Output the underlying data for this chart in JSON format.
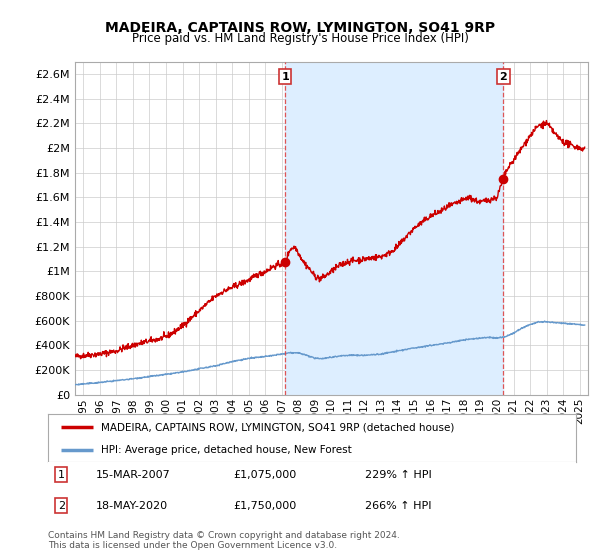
{
  "title": "MADEIRA, CAPTAINS ROW, LYMINGTON, SO41 9RP",
  "subtitle": "Price paid vs. HM Land Registry's House Price Index (HPI)",
  "ylabel_ticks": [
    "£0",
    "£200K",
    "£400K",
    "£600K",
    "£800K",
    "£1M",
    "£1.2M",
    "£1.4M",
    "£1.6M",
    "£1.8M",
    "£2M",
    "£2.2M",
    "£2.4M",
    "£2.6M"
  ],
  "ytick_values": [
    0,
    200000,
    400000,
    600000,
    800000,
    1000000,
    1200000,
    1400000,
    1600000,
    1800000,
    2000000,
    2200000,
    2400000,
    2600000
  ],
  "ylim": [
    0,
    2700000
  ],
  "xlim_start": 1994.5,
  "xlim_end": 2025.5,
  "red_line_color": "#cc0000",
  "blue_line_color": "#6699cc",
  "shade_color": "#ddeeff",
  "dashed_color": "#dd4444",
  "marker1_x": 2007.2,
  "marker1_y": 1075000,
  "marker2_x": 2020.38,
  "marker2_y": 1750000,
  "marker1_label": "1",
  "marker2_label": "2",
  "annotation1_date": "15-MAR-2007",
  "annotation1_price": "£1,075,000",
  "annotation1_hpi": "229% ↑ HPI",
  "annotation2_date": "18-MAY-2020",
  "annotation2_price": "£1,750,000",
  "annotation2_hpi": "266% ↑ HPI",
  "legend_red_label": "MADEIRA, CAPTAINS ROW, LYMINGTON, SO41 9RP (detached house)",
  "legend_blue_label": "HPI: Average price, detached house, New Forest",
  "footer_text": "Contains HM Land Registry data © Crown copyright and database right 2024.\nThis data is licensed under the Open Government Licence v3.0.",
  "background_color": "#ffffff",
  "grid_color": "#cccccc"
}
